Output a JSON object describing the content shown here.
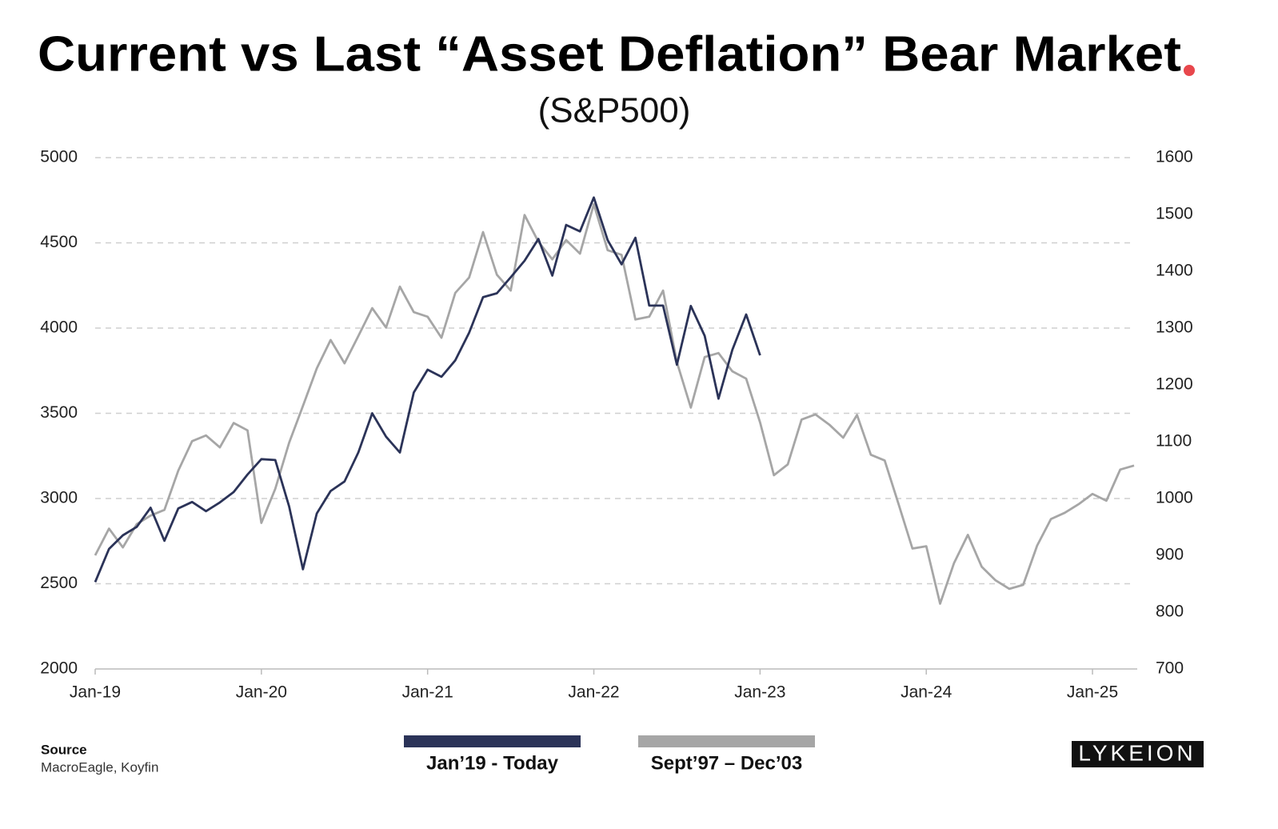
{
  "chart_data": {
    "type": "line",
    "title": "Current vs Last “Asset Deflation” Bear Market",
    "subtitle": "(S&P500)",
    "source_label": "Source",
    "source": "MacroEagle, Koyfin",
    "logo": "LYKEION",
    "x": [
      "2019-01",
      "2019-02",
      "2019-03",
      "2019-04",
      "2019-05",
      "2019-06",
      "2019-07",
      "2019-08",
      "2019-09",
      "2019-10",
      "2019-11",
      "2019-12",
      "2020-01",
      "2020-02",
      "2020-03",
      "2020-04",
      "2020-05",
      "2020-06",
      "2020-07",
      "2020-08",
      "2020-09",
      "2020-10",
      "2020-11",
      "2020-12",
      "2021-01",
      "2021-02",
      "2021-03",
      "2021-04",
      "2021-05",
      "2021-06",
      "2021-07",
      "2021-08",
      "2021-09",
      "2021-10",
      "2021-11",
      "2021-12",
      "2022-01",
      "2022-02",
      "2022-03",
      "2022-04",
      "2022-05",
      "2022-06",
      "2022-07",
      "2022-08",
      "2022-09",
      "2022-10",
      "2022-11",
      "2022-12",
      "2023-01",
      "2023-02",
      "2023-03",
      "2023-04",
      "2023-05",
      "2023-06",
      "2023-07",
      "2023-08",
      "2023-09",
      "2023-10",
      "2023-11",
      "2023-12",
      "2024-01",
      "2024-02",
      "2024-03",
      "2024-04",
      "2024-05",
      "2024-06",
      "2024-07",
      "2024-08",
      "2024-09",
      "2024-10",
      "2024-11",
      "2024-12",
      "2025-01",
      "2025-02",
      "2025-03",
      "2025-04"
    ],
    "series": [
      {
        "name": "Jan’19 - Today",
        "color": "#2b3358",
        "axis": "y",
        "values": [
          2510,
          2704,
          2784,
          2834,
          2946,
          2752,
          2942,
          2980,
          2926,
          2977,
          3038,
          3141,
          3231,
          3226,
          2954,
          2585,
          2912,
          3044,
          3100,
          3271,
          3500,
          3363,
          3270,
          3622,
          3756,
          3714,
          3811,
          3973,
          4181,
          4204,
          4298,
          4395,
          4523,
          4308,
          4605,
          4567,
          4766,
          4516,
          4374,
          4530,
          4132,
          4132,
          3785,
          4130,
          3955,
          3586,
          3872,
          4080,
          3840,
          null,
          null,
          null,
          null,
          null,
          null,
          null,
          null,
          null,
          null,
          null,
          null,
          null,
          null,
          null,
          null,
          null,
          null,
          null,
          null,
          null,
          null,
          null,
          null,
          null,
          null,
          null
        ]
      },
      {
        "name": "Sept’97 – Dec’03",
        "color": "#a6a6a6",
        "axis": "y2",
        "values": [
          900,
          947,
          914,
          955,
          970,
          980,
          1049,
          1101,
          1111,
          1090,
          1133,
          1120,
          957,
          1017,
          1098,
          1163,
          1229,
          1279,
          1238,
          1286,
          1335,
          1301,
          1373,
          1328,
          1320,
          1283,
          1362,
          1389,
          1469,
          1394,
          1366,
          1499,
          1452,
          1421,
          1455,
          1431,
          1518,
          1437,
          1429,
          1315,
          1320,
          1366,
          1240,
          1160,
          1249,
          1256,
          1224,
          1211,
          1134,
          1041,
          1060,
          1139,
          1148,
          1130,
          1107,
          1147,
          1077,
          1067,
          990,
          912,
          916,
          815,
          886,
          936,
          880,
          856,
          841,
          848,
          917,
          964,
          975,
          990,
          1008,
          996,
          1051,
          1058
        ]
      }
    ],
    "xlim": [
      "2019-01",
      "2025-04"
    ],
    "xticks": [
      {
        "value": "2019-01",
        "label": "Jan-19"
      },
      {
        "value": "2020-01",
        "label": "Jan-20"
      },
      {
        "value": "2021-01",
        "label": "Jan-21"
      },
      {
        "value": "2022-01",
        "label": "Jan-22"
      },
      {
        "value": "2023-01",
        "label": "Jan-23"
      },
      {
        "value": "2024-01",
        "label": "Jan-24"
      },
      {
        "value": "2025-01",
        "label": "Jan-25"
      }
    ],
    "ylim": [
      2000,
      5000
    ],
    "yticks": [
      2000,
      2500,
      3000,
      3500,
      4000,
      4500,
      5000
    ],
    "y2lim": [
      700,
      1600
    ],
    "y2ticks": [
      700,
      800,
      900,
      1000,
      1100,
      1200,
      1300,
      1400,
      1500,
      1600
    ],
    "grid": true
  }
}
